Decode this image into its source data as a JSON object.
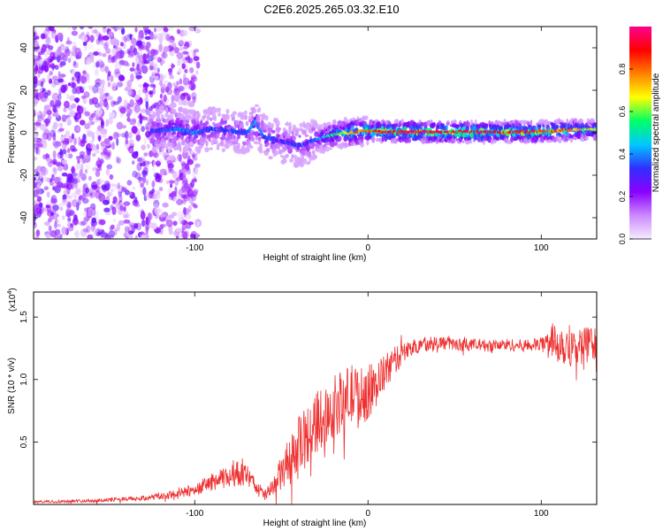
{
  "title": "C2E6.2025.265.03.32.E10",
  "colors": {
    "snr_line": "#ee3030",
    "colormap": [
      "#f4ecff",
      "#cc88ff",
      "#8a00ff",
      "#3030ff",
      "#00c8ff",
      "#00ff66",
      "#ffff00",
      "#ff8000",
      "#ff0000",
      "#ff0090"
    ]
  },
  "chart_data": [
    {
      "type": "heatmap",
      "name": "spectrogram",
      "xlabel": "Height of straight line (km)",
      "ylabel": "Frequency (Hz)",
      "xlim": [
        -193,
        132
      ],
      "ylim": [
        -50,
        50
      ],
      "xticks": [
        -100,
        0,
        100
      ],
      "yticks": [
        -40,
        -20,
        0,
        20,
        40
      ],
      "xtick_labels": [
        "-100",
        "0",
        "100"
      ],
      "ytick_labels": [
        "-40",
        "-20",
        "0",
        "20",
        "40"
      ],
      "ridge": {
        "x": [
          -120,
          -110,
          -100,
          -90,
          -80,
          -70,
          -65,
          -60,
          -55,
          -50,
          -45,
          -40,
          -35,
          -30,
          -25,
          -20,
          -15,
          -10,
          -5,
          0,
          10,
          20,
          40,
          60,
          80,
          100,
          110,
          120,
          130
        ],
        "freq": [
          1,
          2,
          0,
          2,
          1,
          0,
          5,
          -2,
          -3,
          -4,
          -5,
          -6,
          -5,
          -3,
          -2,
          -1,
          0,
          0,
          0.5,
          1,
          0.5,
          0.5,
          0.3,
          0.3,
          0.3,
          0.5,
          1,
          1.5,
          1.5
        ],
        "amplitude": [
          0.35,
          0.4,
          0.4,
          0.35,
          0.35,
          0.35,
          0.45,
          0.35,
          0.35,
          0.3,
          0.35,
          0.35,
          0.3,
          0.4,
          0.5,
          0.6,
          0.65,
          0.75,
          0.8,
          0.85,
          0.9,
          0.95,
          0.95,
          0.95,
          0.95,
          0.9,
          0.85,
          0.75,
          0.65
        ]
      },
      "noise_region": [
        -193,
        -110
      ],
      "colorbar": {
        "label": "Normalized spectral amplitude",
        "range": [
          0,
          1
        ],
        "ticks": [
          0.0,
          0.2,
          0.4,
          0.6,
          0.8
        ],
        "tick_labels": [
          "0.0",
          "0.2",
          "0.4",
          "0.6",
          "0.8"
        ]
      }
    },
    {
      "type": "line",
      "name": "snr",
      "xlabel": "Height of straight line (km)",
      "ylabel": "SNR (10 * v/v)",
      "scale_label": "(x10",
      "scale_exponent": "4",
      "scale_close": ")",
      "xlim": [
        -193,
        132
      ],
      "ylim": [
        0,
        17000
      ],
      "xticks": [
        -100,
        0,
        100
      ],
      "yticks": [
        5000,
        10000,
        15000
      ],
      "xtick_labels": [
        "-100",
        "0",
        "100"
      ],
      "ytick_labels": [
        "0.5",
        "1.0",
        "1.5"
      ],
      "series": [
        {
          "name": "SNR",
          "x": [
            -193,
            -160,
            -130,
            -110,
            -100,
            -90,
            -80,
            -75,
            -70,
            -65,
            -60,
            -55,
            -50,
            -45,
            -40,
            -35,
            -30,
            -25,
            -20,
            -15,
            -10,
            -5,
            0,
            5,
            10,
            15,
            20,
            25,
            30,
            40,
            50,
            60,
            70,
            80,
            90,
            100,
            105,
            110,
            115,
            120,
            125,
            132
          ],
          "y": [
            200,
            300,
            500,
            800,
            1200,
            1800,
            2200,
            2500,
            2300,
            1500,
            700,
            1200,
            2500,
            3500,
            4500,
            5500,
            6500,
            7200,
            7800,
            8200,
            8800,
            8500,
            9000,
            9600,
            10600,
            11400,
            12100,
            12500,
            12800,
            13000,
            12800,
            12800,
            12700,
            12800,
            12700,
            12800,
            13200,
            13000,
            12800,
            12600,
            12800,
            12700
          ],
          "noise_amp": [
            100,
            150,
            200,
            400,
            500,
            700,
            900,
            1000,
            900,
            700,
            500,
            800,
            1500,
            2000,
            2500,
            2500,
            2500,
            2500,
            2500,
            2500,
            2500,
            2500,
            2200,
            1800,
            1500,
            1200,
            900,
            700,
            600,
            600,
            500,
            500,
            500,
            500,
            500,
            600,
            1200,
            1800,
            1800,
            1500,
            1500,
            1400
          ]
        }
      ]
    }
  ]
}
